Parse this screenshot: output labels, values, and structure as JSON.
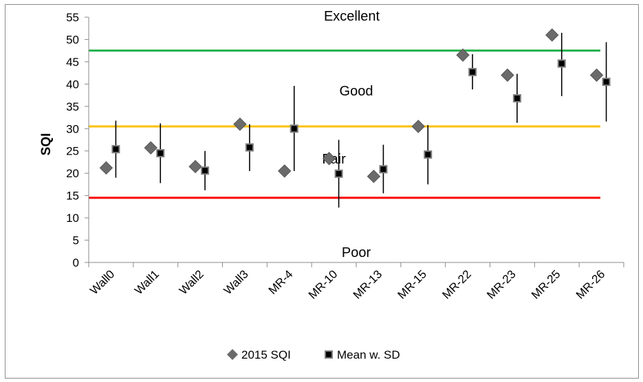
{
  "chart_data": {
    "type": "scatter",
    "title": "",
    "xlabel": "",
    "ylabel": "SQI",
    "ylim": [
      0,
      55
    ],
    "yticks": [
      0,
      5,
      10,
      15,
      20,
      25,
      30,
      35,
      40,
      45,
      50,
      55
    ],
    "grid": false,
    "legend_position": "bottom",
    "categories": [
      "Wall0",
      "Wall1",
      "Wall2",
      "Wall3",
      "MR-4",
      "MR-10",
      "MR-13",
      "MR-15",
      "MR-22",
      "MR-23",
      "MR-25",
      "MR-26"
    ],
    "series": [
      {
        "name": "2015 SQI",
        "marker": "diamond",
        "color": "#6b6b6b",
        "values": [
          21.2,
          25.7,
          21.5,
          31.0,
          20.5,
          23.3,
          19.3,
          30.5,
          46.5,
          42.0,
          51.0,
          42.0
        ]
      },
      {
        "name": "Mean w. SD",
        "marker": "square",
        "color": "#000000",
        "values": [
          25.4,
          24.5,
          20.6,
          25.8,
          30.0,
          19.9,
          20.9,
          24.2,
          42.7,
          36.8,
          44.6,
          40.5
        ],
        "error_low": [
          19.0,
          17.8,
          16.2,
          20.5,
          20.5,
          12.3,
          15.5,
          17.5,
          38.8,
          31.3,
          37.3,
          31.6
        ],
        "error_high": [
          31.8,
          31.2,
          25.0,
          31.0,
          39.6,
          27.5,
          26.4,
          30.8,
          46.7,
          42.3,
          51.5,
          49.4
        ]
      }
    ],
    "threshold_lines": [
      {
        "value": 47.5,
        "color": "#22b14c"
      },
      {
        "value": 30.5,
        "color": "#ffc000"
      },
      {
        "value": 14.5,
        "color": "#ff0000"
      }
    ],
    "annotations": [
      {
        "text": "Excellent",
        "y": 55.3,
        "category_position": 5.9
      },
      {
        "text": "Good",
        "y": 38.5,
        "category_position": 6.0
      },
      {
        "text": "Fair",
        "y": 23.3,
        "category_position": 5.5
      },
      {
        "text": "Poor",
        "y": 2.3,
        "category_position": 6.0
      }
    ]
  }
}
